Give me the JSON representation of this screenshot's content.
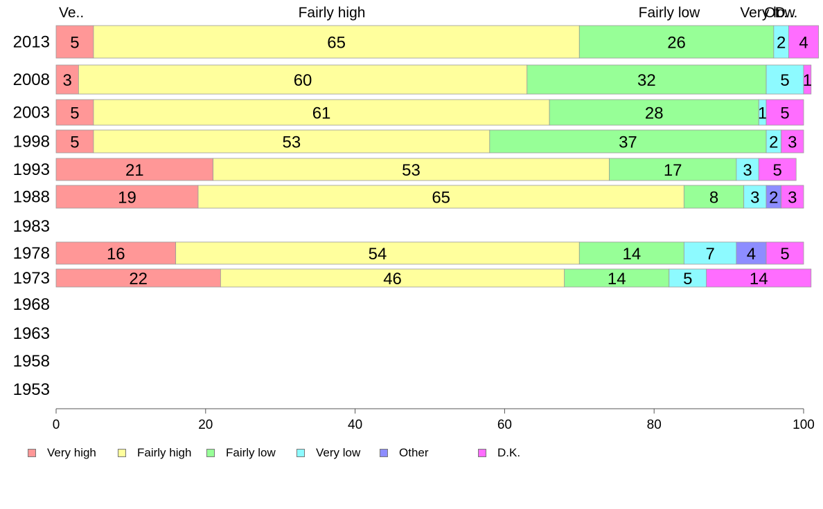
{
  "chart_data": {
    "type": "bar",
    "orientation": "horizontal",
    "stacked": true,
    "categories": [
      "2013",
      "2008",
      "2003",
      "1998",
      "1993",
      "1988",
      "1983",
      "1978",
      "1973",
      "1968",
      "1963",
      "1958",
      "1953"
    ],
    "series": [
      {
        "name": "Very high",
        "color": "#ff9797",
        "values": [
          5,
          3,
          5,
          5,
          21,
          19,
          null,
          16,
          22,
          null,
          null,
          null,
          null
        ]
      },
      {
        "name": "Fairly high",
        "color": "#ffff9d",
        "values": [
          65,
          60,
          61,
          53,
          53,
          65,
          null,
          54,
          46,
          null,
          null,
          null,
          null
        ]
      },
      {
        "name": "Fairly low",
        "color": "#97ff97",
        "values": [
          26,
          32,
          28,
          37,
          17,
          8,
          null,
          14,
          14,
          null,
          null,
          null,
          null
        ]
      },
      {
        "name": "Very low",
        "color": "#8dfaff",
        "values": [
          2,
          5,
          1,
          2,
          3,
          3,
          null,
          7,
          5,
          null,
          null,
          null,
          null
        ]
      },
      {
        "name": "Other",
        "color": "#8d8dff",
        "values": [
          0,
          0,
          0,
          0,
          0,
          2,
          null,
          4,
          0,
          null,
          null,
          null,
          null
        ]
      },
      {
        "name": "D.K.",
        "color": "#ff6dff",
        "values": [
          4,
          1,
          5,
          3,
          5,
          3,
          null,
          5,
          14,
          null,
          null,
          null,
          null
        ]
      }
    ],
    "top_labels": [
      "Ve..",
      "Fairly high",
      "Fairly low",
      "Very low",
      "Ot..",
      "D..."
    ],
    "xlim": [
      0,
      100
    ],
    "xticks": [
      0,
      20,
      40,
      60,
      80,
      100
    ],
    "grid": false,
    "legend_position": "bottom-left"
  }
}
